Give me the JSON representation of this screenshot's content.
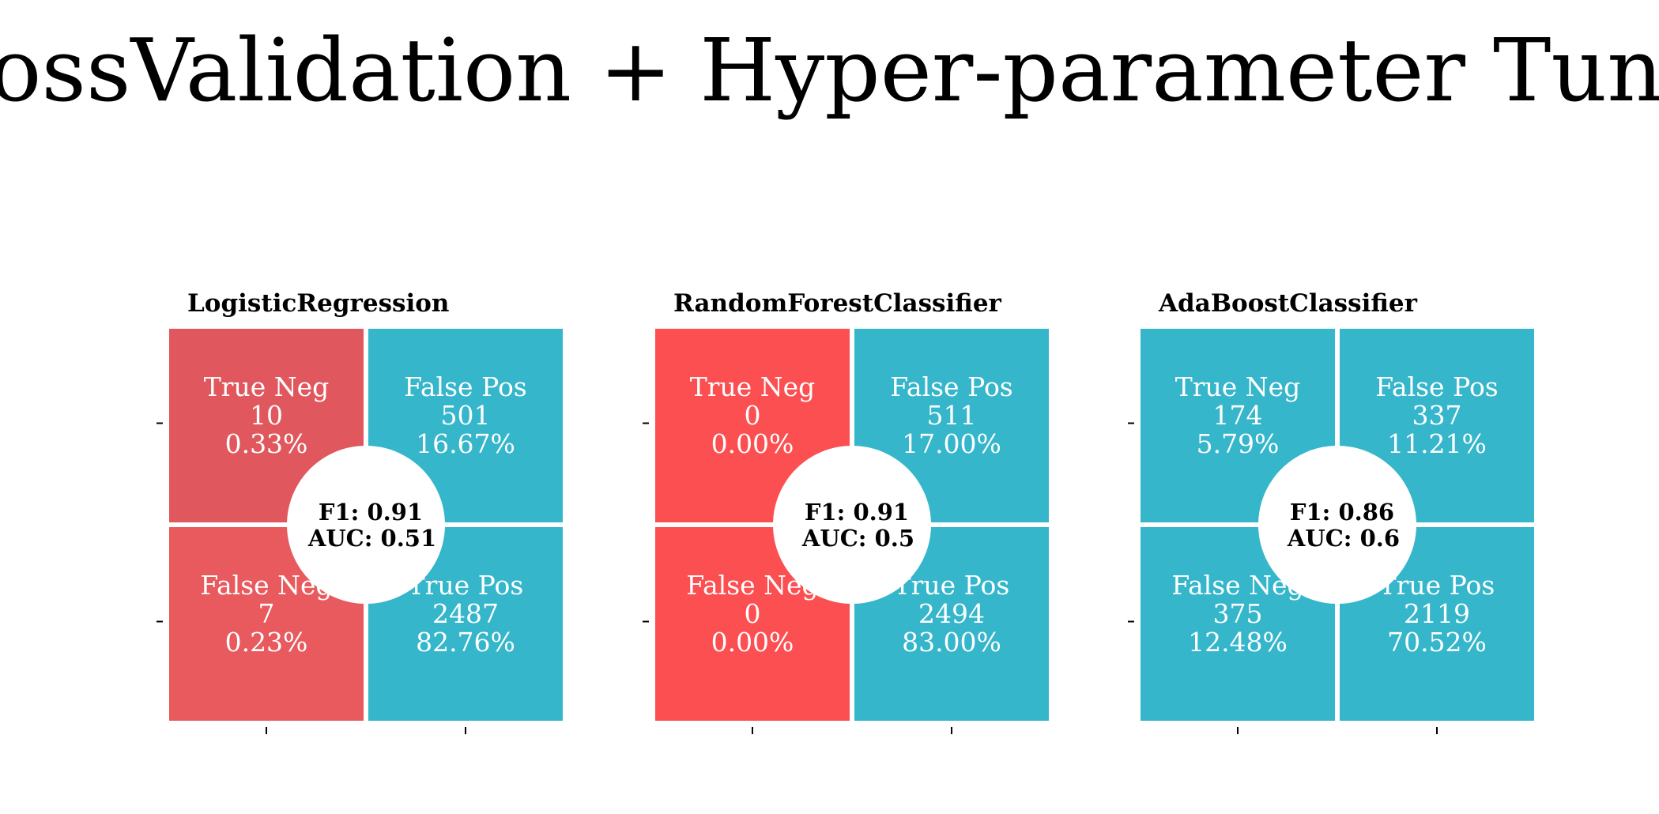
{
  "title": "CrossValidation + Hyper-parameter Tuning",
  "colors": {
    "positive": "#35b6ca",
    "negative_lr": "#e0585e",
    "negative_rf": "#fc4f51",
    "circle": "#ffffff",
    "cell_text": "#ffffff"
  },
  "chart_data": [
    {
      "type": "heatmap",
      "title": "LogisticRegression",
      "cells": [
        {
          "label": "True Neg",
          "count": "10",
          "percent": "0.33%",
          "color": "#e0585e"
        },
        {
          "label": "False Pos",
          "count": "501",
          "percent": "16.67%",
          "color": "#35b6ca"
        },
        {
          "label": "False Neg",
          "count": "7",
          "percent": "0.23%",
          "color": "#e85a5e"
        },
        {
          "label": "True Pos",
          "count": "2487",
          "percent": "82.76%",
          "color": "#35b6ca"
        }
      ],
      "metrics": {
        "f1": "F1: 0.91",
        "auc": "AUC: 0.51"
      }
    },
    {
      "type": "heatmap",
      "title": "RandomForestClassifier",
      "cells": [
        {
          "label": "True Neg",
          "count": "0",
          "percent": "0.00%",
          "color": "#fc4f51"
        },
        {
          "label": "False Pos",
          "count": "511",
          "percent": "17.00%",
          "color": "#35b6ca"
        },
        {
          "label": "False Neg",
          "count": "0",
          "percent": "0.00%",
          "color": "#fc4f51"
        },
        {
          "label": "True Pos",
          "count": "2494",
          "percent": "83.00%",
          "color": "#35b6ca"
        }
      ],
      "metrics": {
        "f1": "F1: 0.91",
        "auc": "AUC: 0.5"
      }
    },
    {
      "type": "heatmap",
      "title": "AdaBoostClassifier",
      "cells": [
        {
          "label": "True Neg",
          "count": "174",
          "percent": "5.79%",
          "color": "#35b6ca"
        },
        {
          "label": "False Pos",
          "count": "337",
          "percent": "11.21%",
          "color": "#35b6ca"
        },
        {
          "label": "False Neg",
          "count": "375",
          "percent": "12.48%",
          "color": "#35b6ca"
        },
        {
          "label": "True Pos",
          "count": "2119",
          "percent": "70.52%",
          "color": "#35b6ca"
        }
      ],
      "metrics": {
        "f1": "F1: 0.86",
        "auc": "AUC: 0.6"
      }
    }
  ]
}
